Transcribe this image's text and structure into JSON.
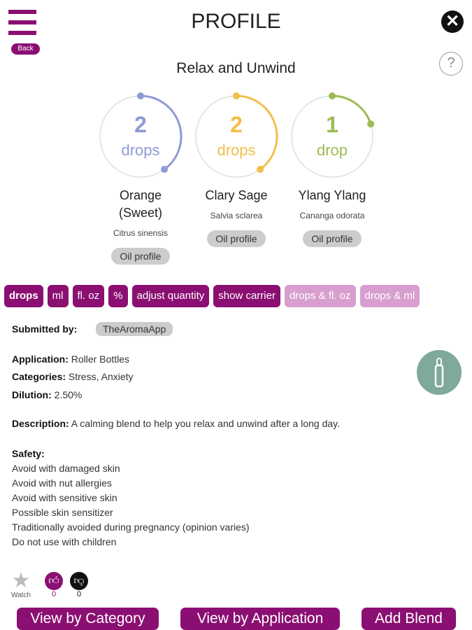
{
  "header": {
    "title": "PROFILE",
    "back_label": "Back",
    "help_label": "?",
    "close_label": "✕"
  },
  "blend_name": "Relax and Unwind",
  "oils": [
    {
      "amount": "2",
      "unit": "drops",
      "name": "Orange (Sweet)",
      "latin": "Citrus sinensis",
      "button": "Oil profile",
      "color": "#8f9ad6",
      "arc_fraction": 0.4
    },
    {
      "amount": "2",
      "unit": "drops",
      "name": "Clary Sage",
      "latin": "Salvia sclarea",
      "button": "Oil profile",
      "color": "#f3be4a",
      "arc_fraction": 0.4
    },
    {
      "amount": "1",
      "unit": "drop",
      "name": "Ylang Ylang",
      "latin": "Cananga odorata",
      "button": "Oil profile",
      "color": "#9dbb52",
      "arc_fraction": 0.2
    }
  ],
  "unit_buttons": [
    {
      "label": "drops",
      "active": true
    },
    {
      "label": "ml",
      "active": true
    },
    {
      "label": "fl. oz",
      "active": true
    },
    {
      "label": "%",
      "active": true
    },
    {
      "label": "adjust quantity",
      "active": true
    },
    {
      "label": "show carrier",
      "active": true
    },
    {
      "label": "drops & fl. oz",
      "active": false
    },
    {
      "label": "drops & ml",
      "active": false
    }
  ],
  "details": {
    "submitted_label": "Submitted by:",
    "submitted_value": "TheAromaApp",
    "application_label": "Application:",
    "application_value": " Roller Bottles",
    "categories_label": "Categories:",
    "categories_value": " Stress, Anxiety",
    "dilution_label": "Dilution:",
    "dilution_value": " 2.50%",
    "description_label": "Description:",
    "description_value": " A calming blend to help you relax and unwind after a long day.",
    "safety_label": "Safety:",
    "safety": [
      "Avoid with damaged skin",
      "Avoid with nut allergies",
      "Avoid with sensitive skin",
      "Possible skin sensitizer",
      "Traditionally avoided during pregnancy (opinion varies)",
      "Do not use with children"
    ]
  },
  "actions": {
    "watch_label": "Watch",
    "likes": "0",
    "dislikes": "0"
  },
  "footer": {
    "category": "View by Category",
    "application": "View by Application",
    "add": "Add Blend"
  },
  "colors": {
    "brand": "#8b0f72",
    "brand_dim": "#d79ecf",
    "roller": "#7ea99b"
  }
}
